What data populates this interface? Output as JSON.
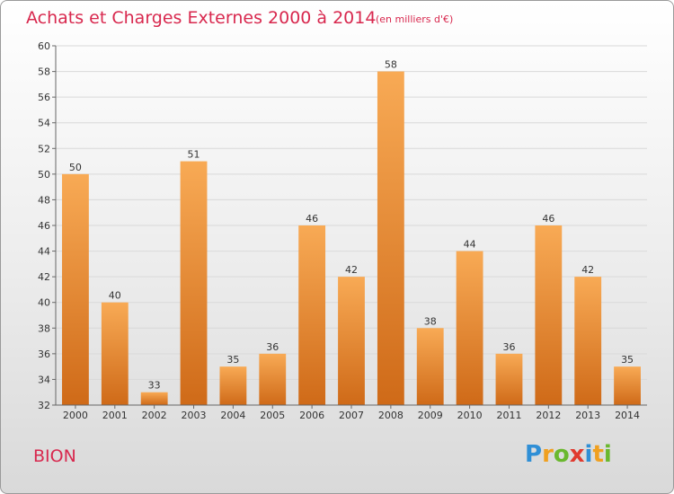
{
  "title": "Achats et Charges Externes 2000 à 2014",
  "subtitle": "(en milliers d'€)",
  "commune": "BION",
  "logo": {
    "letters": [
      "P",
      "r",
      "o",
      "x",
      "i",
      "t",
      "i"
    ],
    "colors": [
      "#2f8fd6",
      "#f0a020",
      "#6ab82e",
      "#e03a2f",
      "#2f8fd6",
      "#f0a020",
      "#6ab82e"
    ]
  },
  "colors": {
    "bar_light": "#f8aa55",
    "bar_dark": "#cf6a18",
    "title": "#d8284e",
    "grid": "#d9d9d9"
  },
  "chart_data": {
    "type": "bar",
    "title": "Achats et Charges Externes 2000 à 2014",
    "subtitle": "(en milliers d'€)",
    "categories": [
      "2000",
      "2001",
      "2002",
      "2003",
      "2004",
      "2005",
      "2006",
      "2007",
      "2008",
      "2009",
      "2010",
      "2011",
      "2012",
      "2013",
      "2014"
    ],
    "values": [
      50,
      40,
      33,
      51,
      35,
      36,
      46,
      42,
      58,
      38,
      44,
      36,
      46,
      42,
      35
    ],
    "ylim": [
      32,
      60
    ],
    "yticks": [
      32,
      34,
      36,
      38,
      40,
      42,
      44,
      46,
      48,
      50,
      52,
      54,
      56,
      58,
      60
    ],
    "grid": true,
    "xlabel": "",
    "ylabel": ""
  }
}
